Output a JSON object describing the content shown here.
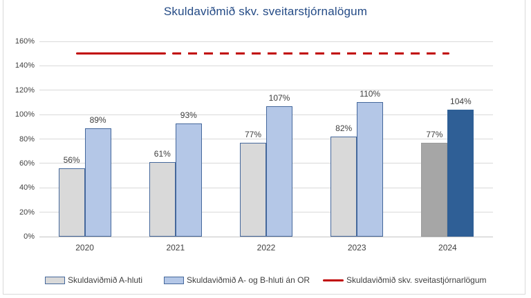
{
  "chart_data": {
    "type": "bar",
    "title": "Skuldaviðmið skv. sveitarstjórnalögum",
    "categories": [
      "2020",
      "2021",
      "2022",
      "2023",
      "2024"
    ],
    "series": [
      {
        "name": "Skuldaviðmið A-hluti",
        "values": [
          56,
          61,
          77,
          82,
          77
        ],
        "labels": [
          "56%",
          "61%",
          "77%",
          "82%",
          "77%"
        ],
        "fill": "#D9D9D9",
        "border": "#44679B",
        "overrides": {
          "4": {
            "fill": "#A6A6A6",
            "border": "#9B9B9B"
          }
        }
      },
      {
        "name": "Skuldaviðmið A- og B-hluti án OR",
        "values": [
          89,
          93,
          107,
          110,
          104
        ],
        "labels": [
          "89%",
          "93%",
          "107%",
          "110%",
          "104%"
        ],
        "fill": "#B4C7E7",
        "border": "#44679B",
        "overrides": {
          "4": {
            "fill": "#2F5F96",
            "border": "#2F5F96"
          }
        }
      }
    ],
    "reference_line": {
      "name": "Skuldaviðmið skv. sveitastjórnarlögum",
      "value": 150,
      "color": "#C00000",
      "style": "solid then dashed"
    },
    "xlabel": "",
    "ylabel": "",
    "ylim": [
      0,
      160
    ],
    "y_tick_step": 20,
    "y_tick_labels": [
      "0%",
      "20%",
      "40%",
      "60%",
      "80%",
      "100%",
      "120%",
      "140%",
      "160%"
    ],
    "grid": true,
    "legend_position": "bottom"
  },
  "colors": {
    "title_text": "#234A85",
    "axis_text": "#404040",
    "gridline": "#D9D9D9",
    "frame_border": "#D9D9D9"
  }
}
